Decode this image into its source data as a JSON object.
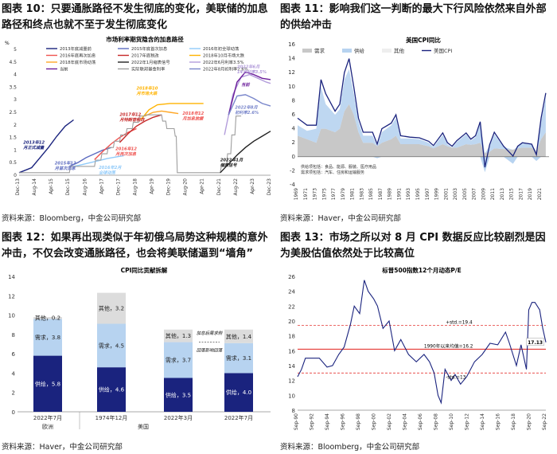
{
  "figures": [
    {
      "id": "fig10",
      "title": "图表 10：只要通胀路径不发生彻底的变化，美联储的加息路径和终点也就不至于发生彻底变化",
      "source": "资料来源：Bloomberg，中金公司研究部"
    },
    {
      "id": "fig11",
      "title": "图表 11：影响我们这一判断的最大下行风险依然来自外部的供给冲击",
      "source": "资料来源：Haver，中金公司研究部"
    },
    {
      "id": "fig12",
      "title": "图表 12：如果再出现类似于年初俄乌局势这种规模的意外冲击，不仅会改变通胀路径，也会将美联储逼到“墙角”",
      "source": "资料来源：Haver，中金公司研究部"
    },
    {
      "id": "fig13",
      "title": "图表 13：市场之所以对 8 月 CPI 数据反应比较剧烈是因为美股估值依然处于比较高位",
      "source": "资料来源：Bloomberg，中金公司研究部"
    }
  ],
  "chart_data": [
    {
      "id": "fig10",
      "type": "line",
      "title": "市场利率期货隐含的加息路径",
      "ylabel": "%",
      "ylim": [
        0,
        5
      ],
      "x_tick_labels": [
        "Dec-13",
        "Aug-14",
        "Apr-15",
        "Dec-15",
        "Aug-16",
        "Apr-17",
        "Dec-17",
        "Aug-18",
        "Apr-19",
        "Dec-19",
        "Aug-20",
        "Apr-21",
        "Dec-21",
        "Aug-22",
        "Apr-23",
        "Dec-23"
      ],
      "legend": [
        "2013年底减量前",
        "2015年底首次加息",
        "2016年初全球动荡",
        "2016年底再次加息",
        "2017年底税改",
        "2018年10月市场大跌",
        "2018年底市场动荡",
        "2022年1月缩表信号",
        "2022年6月利率3.5%",
        "当前",
        "实际联邦基金利率",
        "2022年8月初利率2.6%"
      ],
      "colors": [
        "#1a237e",
        "#5c6bc0",
        "#90caf9",
        "#ef5350",
        "#c62828",
        "#ffb300",
        "#ffa726",
        "#212121",
        "#b39ddb",
        "#6a1b9a",
        "#9e9e9e",
        "#7986cb"
      ],
      "series": [
        {
          "name": "2013年底减量前",
          "color": "#1a237e",
          "x": [
            0,
            6,
            10,
            14,
            18,
            22,
            26
          ],
          "y": [
            0.1,
            0.3,
            0.7,
            1.1,
            1.55,
            1.95,
            2.2
          ]
        },
        {
          "name": "2015年底首次加息",
          "color": "#5c6bc0",
          "x": [
            24,
            28,
            32,
            36,
            40,
            44
          ],
          "y": [
            0.35,
            0.5,
            0.7,
            0.85,
            1.0,
            1.1
          ]
        },
        {
          "name": "2016年初全球动荡",
          "color": "#90caf9",
          "x": [
            26,
            30,
            34,
            38,
            42,
            46,
            50
          ],
          "y": [
            0.35,
            0.42,
            0.5,
            0.58,
            0.66,
            0.72,
            0.78
          ]
        },
        {
          "name": "2016年底再次加息",
          "color": "#ef5350",
          "x": [
            36,
            40,
            44,
            48,
            52,
            56
          ],
          "y": [
            0.62,
            0.95,
            1.25,
            1.5,
            1.7,
            1.85
          ]
        },
        {
          "name": "2017年底税改",
          "color": "#c62828",
          "x": [
            48,
            52,
            56,
            60,
            64,
            68
          ],
          "y": [
            1.3,
            1.65,
            1.95,
            2.15,
            2.3,
            2.4
          ]
        },
        {
          "name": "2018年10月市场大跌",
          "color": "#ffb300",
          "x": [
            58,
            62,
            66,
            72,
            78,
            84,
            88
          ],
          "y": [
            2.2,
            2.6,
            2.8,
            2.85,
            2.85,
            2.85,
            2.85
          ]
        },
        {
          "name": "2018年底市场动荡",
          "color": "#ffa726",
          "x": [
            60,
            64,
            68,
            72,
            76
          ],
          "y": [
            2.35,
            2.5,
            2.55,
            2.5,
            2.45
          ]
        },
        {
          "name": "实际联邦基金利率",
          "color": "#9e9e9e",
          "x": [
            0,
            24,
            24.5,
            36,
            36.5,
            39,
            39.5,
            42,
            42.5,
            45,
            45.5,
            48,
            48.5,
            51,
            51.5,
            54,
            54.5,
            57,
            57.5,
            60,
            60.5,
            68,
            68.5,
            70,
            70.5,
            74,
            74.5,
            75,
            75.5,
            96,
            96.5,
            99,
            99.5,
            101,
            101.5,
            103,
            103.5,
            106
          ],
          "y": [
            0.1,
            0.1,
            0.35,
            0.35,
            0.6,
            0.6,
            0.85,
            0.85,
            1.1,
            1.1,
            1.35,
            1.35,
            1.6,
            1.6,
            1.85,
            1.85,
            2.1,
            2.1,
            2.35,
            2.35,
            2.4,
            2.4,
            2.15,
            2.15,
            1.85,
            1.85,
            1.55,
            1.55,
            0.1,
            0.1,
            0.35,
            0.35,
            0.85,
            0.85,
            1.6,
            1.6,
            2.35,
            2.35
          ]
        },
        {
          "name": "2022年1月缩表信号",
          "color": "#212121",
          "x": [
            96,
            100,
            104,
            108,
            112,
            116,
            120
          ],
          "y": [
            0.1,
            0.45,
            0.8,
            1.1,
            1.35,
            1.55,
            1.75
          ]
        },
        {
          "name": "2022年6月利率3.5%",
          "color": "#b39ddb",
          "x": [
            98,
            102,
            106,
            110,
            114,
            118,
            120
          ],
          "y": [
            1.6,
            3.2,
            3.9,
            4.0,
            3.85,
            3.7,
            3.65
          ]
        },
        {
          "name": "当前",
          "color": "#6a1b9a",
          "x": [
            100,
            104,
            108,
            112,
            116,
            120
          ],
          "y": [
            2.4,
            3.7,
            4.1,
            4.0,
            3.85,
            3.8
          ]
        },
        {
          "name": "2022年8月初利率2.6%",
          "color": "#7986cb",
          "x": [
            100,
            104,
            108,
            112,
            116,
            120
          ],
          "y": [
            2.4,
            3.15,
            3.2,
            3.05,
            2.85,
            2.75
          ]
        }
      ],
      "annotations": [
        "2013年12月正式减量",
        "2015年12月首次加息",
        "2016年2月全球动荡",
        "2016年12月再次加息",
        "2017年12月特朗普税改",
        "2018年10月市场大跌",
        "2018年12月加息放缓",
        "2022年1月缩表信号",
        "2022年6月14日利率3.5%",
        "当前",
        "2022年8月初利率2.6%"
      ]
    },
    {
      "id": "fig11",
      "type": "area",
      "title": "美国CPI同比",
      "ylim": [
        -4,
        16
      ],
      "yticks": [
        -4,
        -2,
        0,
        2,
        4,
        6,
        8,
        10,
        12,
        14,
        16
      ],
      "x_tick_labels": [
        "1969",
        "1971",
        "1973",
        "1975",
        "1977",
        "1979",
        "1981",
        "1983",
        "1985",
        "1987",
        "1989",
        "1991",
        "1993",
        "1995",
        "1997",
        "1999",
        "2001",
        "2003",
        "2005",
        "2007",
        "2009",
        "2011",
        "2013",
        "2015",
        "2017",
        "2019",
        "2021"
      ],
      "legend": [
        "需求",
        "供给",
        "其他",
        "美国CPI"
      ],
      "colors": {
        "demand": "#c8c8c8",
        "supply": "#b7d3f0",
        "other": "#eeeeee",
        "cpi": "#1a237e"
      },
      "note": "供给项包括：食品、能源、服装、医疗用品\n需求项包括：汽车、住房和运输服务",
      "x_years": [
        1969,
        1971,
        1973,
        1974,
        1975,
        1977,
        1978,
        1979,
        1980,
        1981,
        1982,
        1983,
        1985,
        1986,
        1987,
        1989,
        1990,
        1991,
        1993,
        1995,
        1997,
        1998,
        2000,
        2001,
        2002,
        2003,
        2005,
        2006,
        2007,
        2008,
        2009,
        2010,
        2011,
        2013,
        2015,
        2016,
        2017,
        2019,
        2020,
        2021,
        2022
      ],
      "cpi": [
        5.5,
        4.5,
        4.5,
        11.0,
        9.0,
        6.5,
        7.5,
        12.0,
        14.0,
        10.0,
        5.5,
        3.5,
        3.5,
        1.8,
        4.0,
        4.8,
        6.0,
        3.0,
        2.8,
        2.7,
        2.2,
        1.6,
        3.4,
        2.0,
        1.5,
        2.3,
        3.4,
        2.5,
        3.0,
        5.0,
        -1.5,
        1.7,
        3.5,
        1.5,
        0.1,
        1.5,
        2.0,
        1.8,
        0.3,
        5.5,
        9.1
      ],
      "demand": [
        3.0,
        2.5,
        2.0,
        4.0,
        4.0,
        3.5,
        4.0,
        6.5,
        7.5,
        6.0,
        3.5,
        2.0,
        2.0,
        1.5,
        2.0,
        2.5,
        3.0,
        1.8,
        1.8,
        1.8,
        1.5,
        1.2,
        1.8,
        1.5,
        1.3,
        1.3,
        1.8,
        1.7,
        1.8,
        2.0,
        0.5,
        0.7,
        1.2,
        1.1,
        1.0,
        1.2,
        1.3,
        1.3,
        0.8,
        2.5,
        3.5
      ],
      "supply": [
        1.5,
        1.2,
        2.0,
        6.0,
        3.5,
        2.5,
        2.8,
        4.5,
        5.0,
        3.0,
        1.5,
        1.0,
        1.0,
        -0.2,
        1.5,
        2.0,
        2.5,
        0.8,
        0.8,
        0.7,
        0.5,
        0.2,
        1.3,
        0.3,
        0.0,
        0.8,
        1.4,
        0.6,
        1.0,
        2.7,
        -2.2,
        0.8,
        2.0,
        0.3,
        -1.0,
        0.2,
        0.6,
        0.4,
        -0.6,
        2.5,
        5.0
      ]
    },
    {
      "id": "fig12",
      "type": "bar",
      "title": "CPI同比贡献拆解",
      "ylim": [
        0,
        14
      ],
      "yticks": [
        0,
        2,
        4,
        6,
        8,
        10,
        12,
        14
      ],
      "categories": [
        "2022年7月",
        "1974年12月",
        "2022年3月",
        "2022年7月"
      ],
      "group_labels": [
        "欧洲",
        "美国"
      ],
      "series": [
        {
          "name": "供给",
          "color": "#1a237e",
          "values": [
            5.8,
            4.6,
            3.5,
            4.0
          ],
          "labels": [
            "供给，5.8",
            "供给，4.6",
            "供给，3.5",
            "供给，4.0"
          ]
        },
        {
          "name": "需求",
          "color": "#b7d3f0",
          "values": [
            3.8,
            4.5,
            3.7,
            3.1
          ],
          "labels": [
            "需求，3.8",
            "需求，4.5",
            "需求，3.7",
            "需求，3.1"
          ]
        },
        {
          "name": "其他",
          "color": "#dcdcdc",
          "values": [
            0.2,
            3.2,
            1.3,
            1.4
          ],
          "labels": [
            "其他，0.2",
            "其他，3.2",
            "其他，1.3",
            "其他，1.4"
          ]
        }
      ],
      "annotation": "加息后需求侧回落影响回落"
    },
    {
      "id": "fig13",
      "type": "line",
      "title": "标普500指数12个月动态P/E",
      "ylim": [
        8,
        26
      ],
      "yticks": [
        8,
        10,
        12,
        14,
        16,
        18,
        20,
        22,
        24,
        26
      ],
      "x_tick_labels": [
        "Sep-90",
        "Sep-92",
        "Sep-94",
        "Sep-96",
        "Sep-98",
        "Sep-00",
        "Sep-02",
        "Sep-04",
        "Sep-06",
        "Sep-08",
        "Sep-10",
        "Sep-12",
        "Sep-14",
        "Sep-16",
        "Sep-18",
        "Sep-20",
        "Sep-22"
      ],
      "x": [
        1990.7,
        1991.2,
        1991.7,
        1992.5,
        1993.5,
        1994.5,
        1995.2,
        1996.0,
        1996.7,
        1997.5,
        1998.0,
        1998.7,
        1999.3,
        1999.8,
        2000.5,
        2001.0,
        2001.7,
        2002.5,
        2003.2,
        2004.0,
        2005.0,
        2006.0,
        2007.0,
        2007.7,
        2008.3,
        2008.8,
        2009.2,
        2009.7,
        2010.5,
        2011.0,
        2011.7,
        2012.5,
        2013.5,
        2014.5,
        2015.5,
        2016.5,
        2017.5,
        2018.0,
        2018.9,
        2019.5,
        2020.2,
        2020.5,
        2020.9,
        2021.3,
        2021.9,
        2022.3,
        2022.7
      ],
      "y": [
        12.5,
        13.5,
        15.0,
        15.0,
        15.0,
        13.8,
        14.0,
        15.5,
        16.5,
        19.5,
        22.0,
        21.0,
        25.5,
        24.0,
        23.0,
        22.0,
        19.0,
        20.0,
        16.0,
        17.5,
        15.5,
        14.5,
        15.5,
        14.5,
        13.0,
        10.0,
        9.0,
        13.5,
        12.0,
        12.8,
        11.5,
        12.5,
        14.5,
        15.5,
        17.0,
        16.8,
        18.5,
        17.0,
        14.0,
        16.8,
        13.5,
        21.5,
        22.5,
        22.5,
        21.5,
        19.0,
        17.13
      ],
      "mean": 16.2,
      "plus_std": 19.4,
      "minus_std": 13.0,
      "labels": {
        "mean": "1990年以来均值=16.2",
        "plus": "+std.=19.4",
        "minus": "-std.=13",
        "last": "17.13"
      }
    }
  ]
}
